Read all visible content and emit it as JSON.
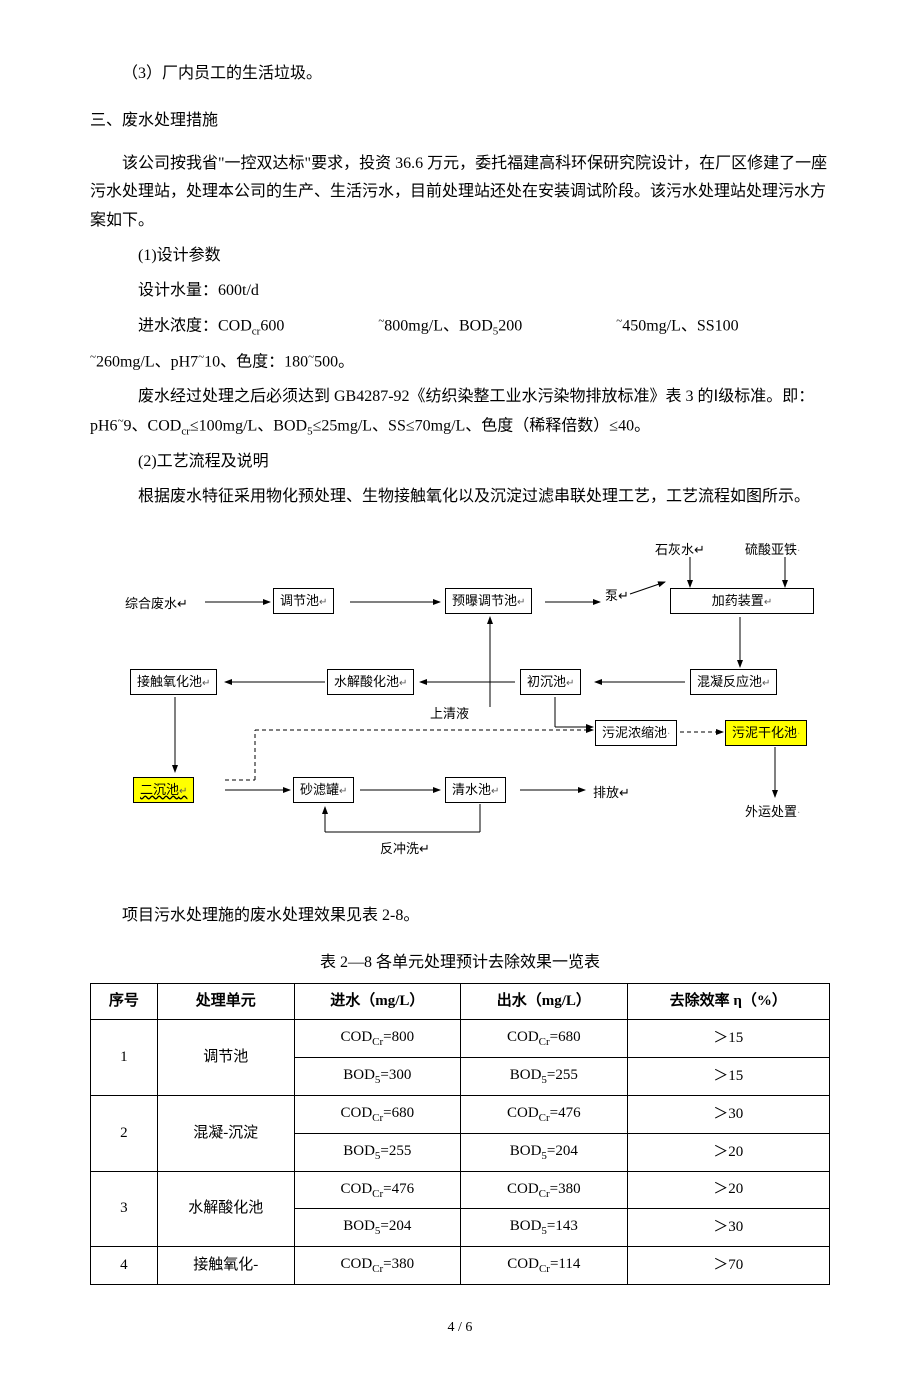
{
  "p1": "（3）厂内员工的生活垃圾。",
  "h2": "三、废水处理措施",
  "p2": "该公司按我省\"一控双达标\"要求，投资 36.6 万元，委托福建高科环保研究院设计，在厂区修建了一座污水处理站，处理本公司的生产、生活污水，目前处理站还处在安装调试阶段。该污水处理站处理污水方案如下。",
  "p3": "(1)设计参数",
  "p4": "设计水量：600t/d",
  "p5a": "进水浓度：COD",
  "p5a2": "600",
  "p5b": "800mg/L、BOD",
  "p5b2": "200",
  "p5c": "450mg/L、SS100",
  "p6a": "260mg/L、pH7",
  "p6b": "10、色度：180",
  "p6c": "500。",
  "p7a": "废水经过处理之后必须达到 GB4287-92《纺织染整工业水污染物排放标准》表 3 的Ⅰ级标准。即：pH6",
  "p7b": "9、COD",
  "p7c": "≤100mg/L、BOD",
  "p7d": "≤25mg/L、SS≤70mg/L、色度（稀释倍数）≤40。",
  "p8": "(2)工艺流程及说明",
  "p9": "根据废水特征采用物化预处理、生物接触氧化以及沉淀过滤串联处理工艺，工艺流程如图所示。",
  "flow": {
    "lime": "石灰水",
    "feso4": "硫酸亚铁",
    "waste": "综合废水",
    "reg": "调节池",
    "preaer": "预曝调节池",
    "pump": "泵",
    "dosing": "加药装置",
    "bio": "接触氧化池",
    "hydro": "水解酸化池",
    "primset": "初沉池",
    "coag": "混凝反应池",
    "supern": "上清液",
    "thicken": "污泥浓缩池",
    "dry": "污泥干化池",
    "sec": "二沉池",
    "sand": "砂滤罐",
    "clear": "清水池",
    "discharge": "排放",
    "export": "外运处置",
    "backwash": "反冲洗",
    "ret": "↵"
  },
  "tblIntro": "项目污水处理施的废水处理效果见表 2-8。",
  "tblCaption": "表 2—8      各单元处理预计去除效果一览表",
  "th": {
    "no": "序号",
    "unit": "处理单元",
    "in": "进水（mg/L）",
    "out": "出水（mg/L）",
    "eff": "去除效率 η（%）"
  },
  "rows": [
    {
      "no": "1",
      "unit": "调节池",
      "in": [
        "COD",
        "Cr",
        "=800",
        "BOD",
        "5",
        "=300"
      ],
      "out": [
        "COD",
        "Cr",
        "=680",
        "BOD",
        "5",
        "=255"
      ],
      "eff": [
        "＞15",
        "＞15"
      ]
    },
    {
      "no": "2",
      "unit": "混凝-沉淀",
      "in": [
        "COD",
        "Cr",
        "=680",
        "BOD",
        "5",
        "=255"
      ],
      "out": [
        "COD",
        "Cr",
        "=476",
        "BOD",
        "5",
        "=204"
      ],
      "eff": [
        "＞30",
        "＞20"
      ]
    },
    {
      "no": "3",
      "unit": "水解酸化池",
      "in": [
        "COD",
        "Cr",
        "=476",
        "BOD",
        "5",
        "=204"
      ],
      "out": [
        "COD",
        "Cr",
        "=380",
        "BOD",
        "5",
        "=143"
      ],
      "eff": [
        "＞20",
        "＞30"
      ]
    },
    {
      "no": "4",
      "unit": "接触氧化-",
      "in": [
        "COD",
        "Cr",
        "=380"
      ],
      "out": [
        "COD",
        "Cr",
        "=114"
      ],
      "eff": [
        "＞70"
      ]
    }
  ],
  "pageNum": "4 / 6"
}
